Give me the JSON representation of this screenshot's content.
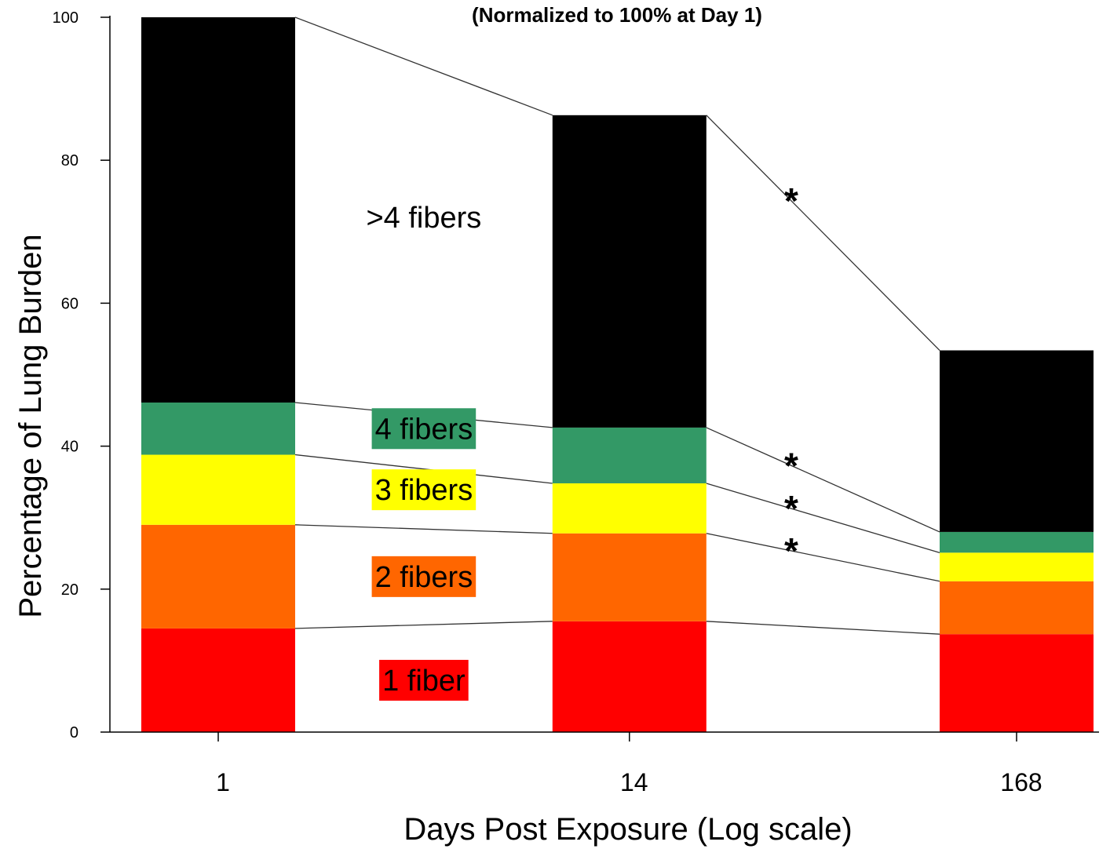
{
  "chart_data": {
    "type": "bar",
    "stacked": true,
    "subtitle": "(Normalized to 100% at Day 1)",
    "xlabel": "Days Post Exposure  (Log scale)",
    "ylabel": "Percentage of Lung Burden",
    "x_scale": "log",
    "categories": [
      "1",
      "14",
      "168"
    ],
    "x": [
      1,
      14,
      168
    ],
    "ylim": [
      0,
      100
    ],
    "yticks": [
      0,
      20,
      40,
      60,
      80,
      100
    ],
    "grid": false,
    "series": [
      {
        "name": "1 fiber",
        "color": "#ff0000",
        "values": [
          14.5,
          15.5,
          13.7
        ]
      },
      {
        "name": "2 fibers",
        "color": "#ff6600",
        "values": [
          14.5,
          12.3,
          7.4
        ]
      },
      {
        "name": "3 fibers",
        "color": "#ffff00",
        "values": [
          9.8,
          7.0,
          4.0
        ]
      },
      {
        "name": "4 fibers",
        "color": "#339966",
        "values": [
          7.3,
          7.8,
          2.9
        ]
      },
      {
        "name": ">4 fibers",
        "color": "#000000",
        "values": [
          53.9,
          43.7,
          25.4
        ]
      }
    ],
    "annotations": [
      {
        "text": "*",
        "series": ">4 fibers"
      },
      {
        "text": "*",
        "series": "4 fibers"
      },
      {
        "text": "*",
        "series": "3 fibers"
      },
      {
        "text": "*",
        "series": "2 fibers"
      }
    ]
  }
}
